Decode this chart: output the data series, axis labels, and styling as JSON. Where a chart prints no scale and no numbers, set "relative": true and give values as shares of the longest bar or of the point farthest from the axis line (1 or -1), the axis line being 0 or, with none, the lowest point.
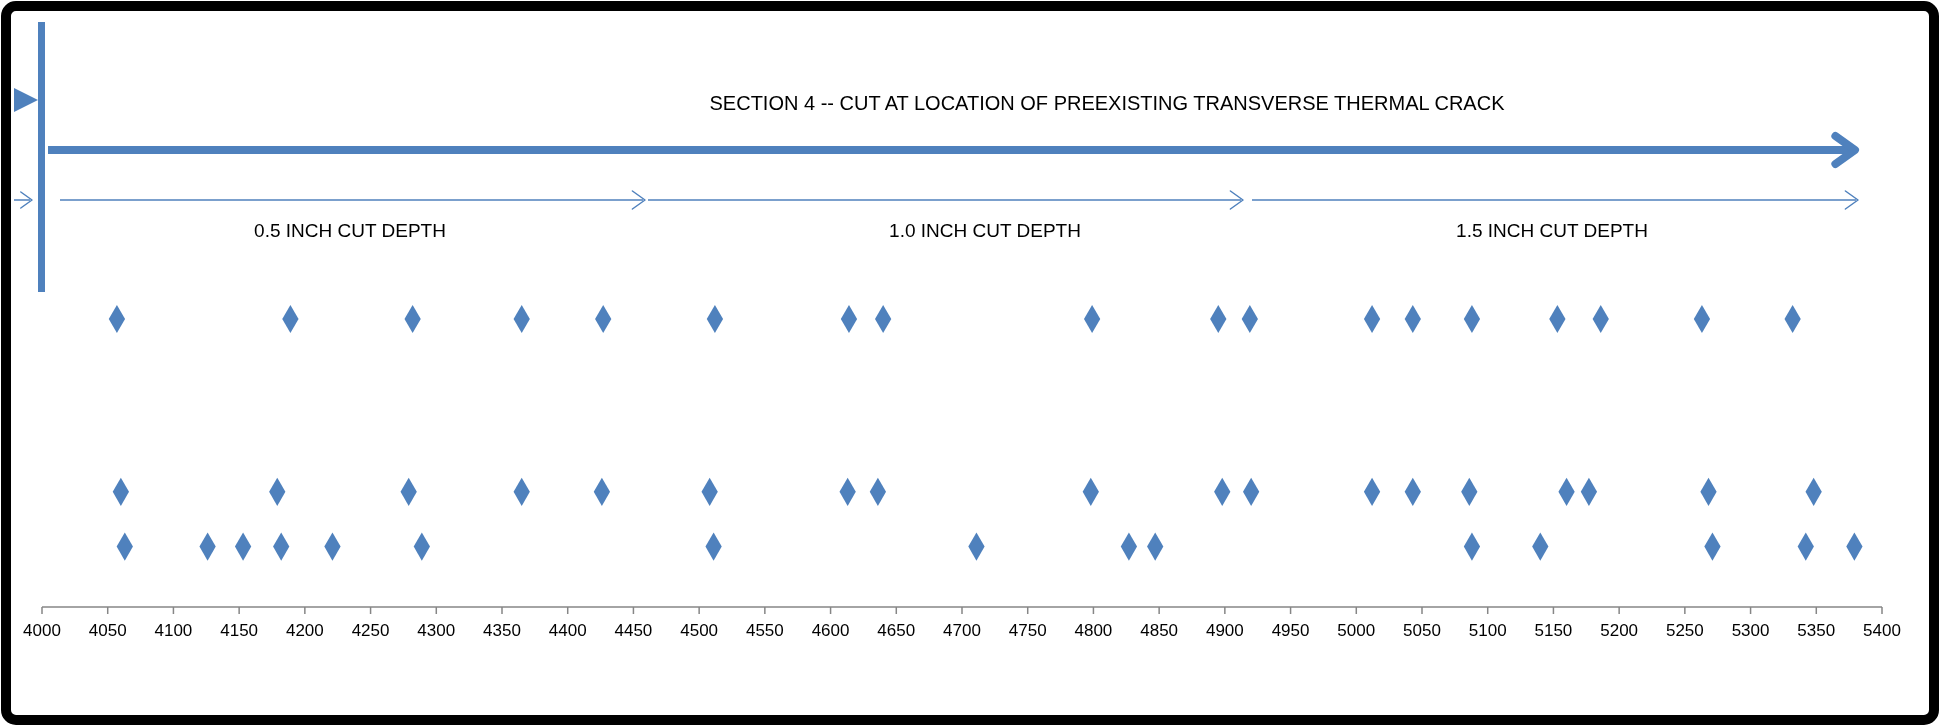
{
  "chart_data": {
    "type": "scatter",
    "relative": true,
    "marker": "diamond",
    "grid": false,
    "xlim": [
      4000,
      5400
    ],
    "xticks": [
      4000,
      4050,
      4100,
      4150,
      4200,
      4250,
      4300,
      4350,
      4400,
      4450,
      4500,
      4550,
      4600,
      4650,
      4700,
      4750,
      4800,
      4850,
      4900,
      4950,
      5000,
      5050,
      5100,
      5150,
      5200,
      5250,
      5300,
      5350,
      5400
    ],
    "annotations": [
      "SECTION 4 -- CUT AT LOCATION OF PREEXISTING TRANSVERSE THERMAL CRACK",
      "0.5 INCH CUT DEPTH",
      "1.0 INCH CUT DEPTH",
      "1.5 INCH CUT DEPTH"
    ],
    "color": "#4f81bd",
    "x": [
      4057,
      4189,
      4282,
      4365,
      4427,
      4512,
      4614,
      4640,
      4799,
      4895,
      4919,
      5012,
      5043,
      5088,
      5153,
      5186,
      5263,
      5332,
      4060,
      4179,
      4279,
      4365,
      4426,
      4508,
      4613,
      4636,
      4798,
      4898,
      4920,
      5012,
      5043,
      5086,
      5160,
      5177,
      5268,
      5348,
      4063,
      4126,
      4153,
      4182,
      4221,
      4289,
      4511,
      4711,
      4827,
      4847,
      5088,
      5140,
      5271,
      5342,
      5379
    ],
    "values": [
      1,
      1,
      1,
      1,
      1,
      1,
      1,
      1,
      1,
      1,
      1,
      1,
      1,
      1,
      1,
      1,
      1,
      1,
      0.4,
      0.4,
      0.4,
      0.4,
      0.4,
      0.4,
      0.4,
      0.4,
      0.4,
      0.4,
      0.4,
      0.4,
      0.4,
      0.4,
      0.4,
      0.4,
      0.4,
      0.4,
      0.21,
      0.21,
      0.21,
      0.21,
      0.21,
      0.21,
      0.21,
      0.21,
      0.21,
      0.21,
      0.21,
      0.21,
      0.21,
      0.21,
      0.21
    ]
  }
}
